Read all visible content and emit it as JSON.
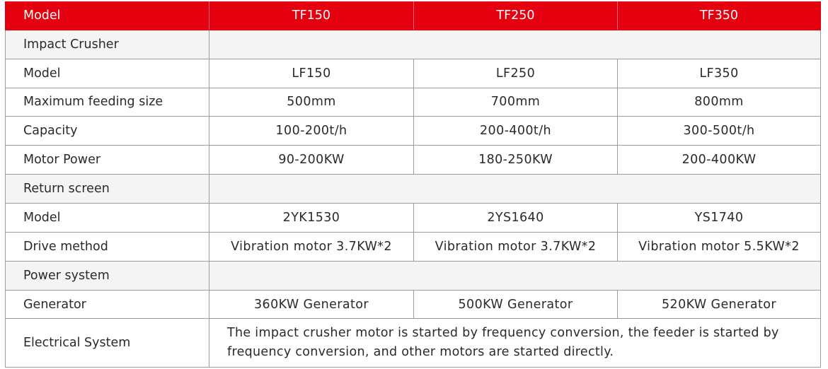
{
  "header": {
    "label": "Model",
    "models": [
      "TF150",
      "TF250",
      "TF350"
    ]
  },
  "impact_crusher": {
    "title": "Impact Crusher",
    "rows": [
      {
        "label": "Model",
        "values": [
          "LF150",
          "LF250",
          "LF350"
        ]
      },
      {
        "label": "Maximum feeding size",
        "values": [
          "500mm",
          "700mm",
          "800mm"
        ]
      },
      {
        "label": "Capacity",
        "values": [
          "100-200t/h",
          "200-400t/h",
          "300-500t/h"
        ]
      },
      {
        "label": "Motor Power",
        "values": [
          "90-200KW",
          "180-250KW",
          "200-400KW"
        ]
      }
    ]
  },
  "return_screen": {
    "title": "Return screen",
    "rows": [
      {
        "label": "Model",
        "values": [
          "2YK1530",
          "2YS1640",
          "YS1740"
        ]
      },
      {
        "label": "Drive method",
        "values": [
          "Vibration motor 3.7KW*2",
          "Vibration motor 3.7KW*2",
          "Vibration motor 5.5KW*2"
        ]
      }
    ]
  },
  "power_system": {
    "title": "Power system",
    "rows": [
      {
        "label": "Generator",
        "values": [
          "360KW Generator",
          "500KW Generator",
          "520KW Generator"
        ]
      }
    ],
    "electrical": {
      "label": "Electrical System",
      "text": "The impact crusher motor is started by frequency conversion, the feeder is started by frequency conversion, and other motors are started directly."
    }
  },
  "colors": {
    "header_bg": "#e4000f",
    "header_text": "#ffffff",
    "section_bg": "#f4f4f4",
    "border": "#9c9c9c"
  }
}
